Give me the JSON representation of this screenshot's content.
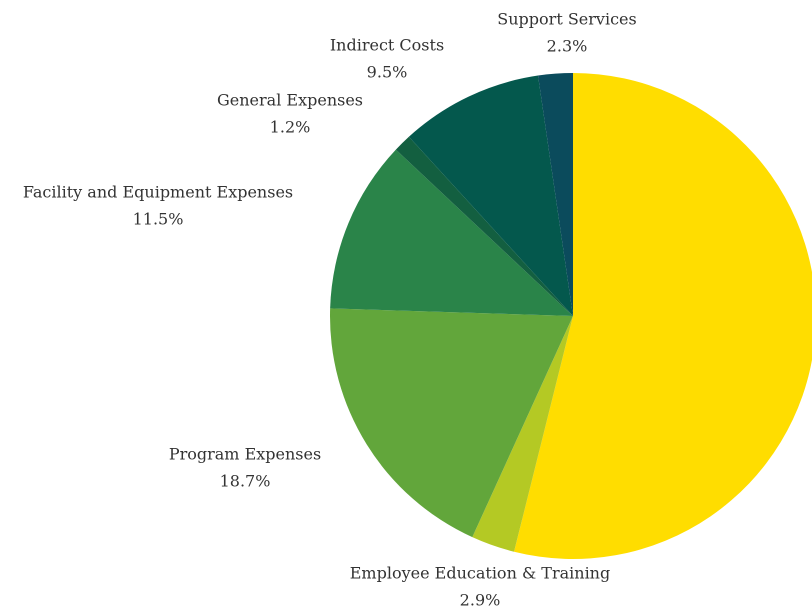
{
  "chart_data": {
    "type": "pie",
    "categories": [
      null,
      "Employee Education & Training",
      "Program Expenses",
      "Facility and Equipment Expenses",
      "General Expenses",
      "Indirect Costs",
      "Support Services"
    ],
    "values": [
      53.9,
      2.9,
      18.7,
      11.5,
      1.2,
      9.5,
      2.3
    ],
    "value_labels": [
      null,
      "2.9%",
      "18.7%",
      "11.5%",
      "1.2%",
      "9.5%",
      "2.3%"
    ],
    "colors": [
      "#ffdd00",
      "#b4c924",
      "#62a63b",
      "#2a8449",
      "#135f40",
      "#04584d",
      "#0b4b5c"
    ]
  }
}
